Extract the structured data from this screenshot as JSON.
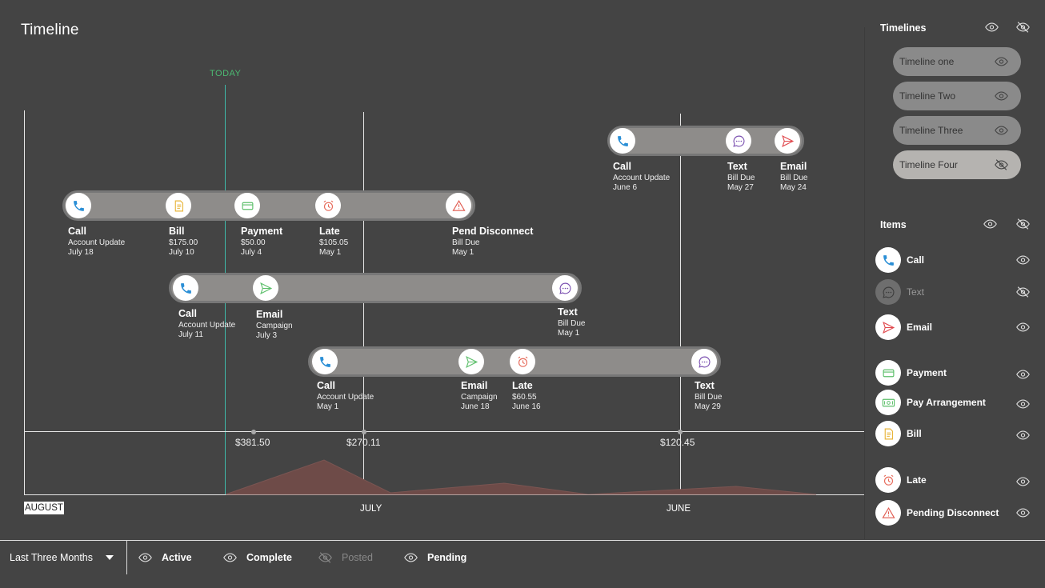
{
  "header": {
    "title": "Timeline",
    "today_label": "TODAY"
  },
  "timelines": [
    {
      "nodes": [
        {
          "icon": "phone-icon",
          "title": "Call",
          "sub": "Account Update",
          "date": "July 18"
        },
        {
          "icon": "bill-icon",
          "title": "Bill",
          "sub": "$175.00",
          "date": "July 10"
        },
        {
          "icon": "payment-card-icon",
          "title": "Payment",
          "sub": "$50.00",
          "date": "July 4"
        },
        {
          "icon": "alarm-clock-icon",
          "title": "Late",
          "sub": "$105.05",
          "date": "May 1"
        },
        {
          "icon": "warning-triangle-icon",
          "title": "Pend Disconnect",
          "sub": "Bill Due",
          "date": "May 1"
        }
      ]
    },
    {
      "nodes": [
        {
          "icon": "phone-icon",
          "title": "Call",
          "sub": "Account Update",
          "date": "July 11"
        },
        {
          "icon": "send-icon",
          "title": "Email",
          "sub": "Campaign",
          "date": "July 3"
        },
        {
          "icon": "chat-bubble-icon",
          "title": "Text",
          "sub": "Bill Due",
          "date": "May 1"
        }
      ]
    },
    {
      "nodes": [
        {
          "icon": "phone-icon",
          "title": "Call",
          "sub": "Account Update",
          "date": "May 1"
        },
        {
          "icon": "send-icon",
          "title": "Email",
          "sub": "Campaign",
          "date": "June 18"
        },
        {
          "icon": "alarm-clock-icon",
          "title": "Late",
          "sub": "$60.55",
          "date": "June 16"
        },
        {
          "icon": "chat-bubble-icon",
          "title": "Text",
          "sub": "Bill Due",
          "date": "May 29"
        }
      ]
    },
    {
      "nodes": [
        {
          "icon": "phone-icon",
          "title": "Call",
          "sub": "Account Update",
          "date": "June 6"
        },
        {
          "icon": "chat-bubble-icon",
          "title": "Text",
          "sub": "Bill Due",
          "date": "May 27"
        },
        {
          "icon": "send-icon",
          "title": "Email",
          "sub": "Bill Due",
          "date": "May 24"
        }
      ]
    }
  ],
  "axis": {
    "months": [
      "AUGUST",
      "JULY",
      "JUNE"
    ],
    "selected_month": "AUGUST",
    "amounts": [
      "$381.50",
      "$270.11",
      "$120.45"
    ]
  },
  "sidebar": {
    "timelines_heading": "Timelines",
    "timelines": [
      {
        "label": "Timeline one",
        "visible": true
      },
      {
        "label": "Timeline Two",
        "visible": true
      },
      {
        "label": "Timeline Three",
        "visible": true
      },
      {
        "label": "Timeline Four",
        "visible": false
      }
    ],
    "items_heading": "Items",
    "items": [
      {
        "label": "Call",
        "icon": "phone-icon",
        "visible": true
      },
      {
        "label": "Text",
        "icon": "chat-bubble-icon",
        "visible": false
      },
      {
        "label": "Email",
        "icon": "send-icon",
        "visible": true
      },
      {
        "label": "Payment",
        "icon": "payment-card-icon",
        "visible": true
      },
      {
        "label": "Pay Arrangement",
        "icon": "cash-icon",
        "visible": true
      },
      {
        "label": "Bill",
        "icon": "bill-icon",
        "visible": true
      },
      {
        "label": "Late",
        "icon": "alarm-clock-icon",
        "visible": true
      },
      {
        "label": "Pending Disconnect",
        "icon": "warning-triangle-icon",
        "visible": true
      }
    ]
  },
  "footer": {
    "range": "Last Three Months",
    "filters": [
      {
        "label": "Active",
        "visible": true
      },
      {
        "label": "Complete",
        "visible": true
      },
      {
        "label": "Posted",
        "visible": false
      },
      {
        "label": "Pending",
        "visible": true
      }
    ]
  },
  "colors": {
    "phone": "#2b8fd6",
    "chat": "#7a4fb0",
    "send_red": "#e0474c",
    "send_green": "#5cbf6a",
    "card": "#5cbf6a",
    "bill": "#e8b53a",
    "alarm": "#e66a5a",
    "warning": "#e05a4f",
    "today": "#4cba72",
    "area": "#6e4b48"
  }
}
